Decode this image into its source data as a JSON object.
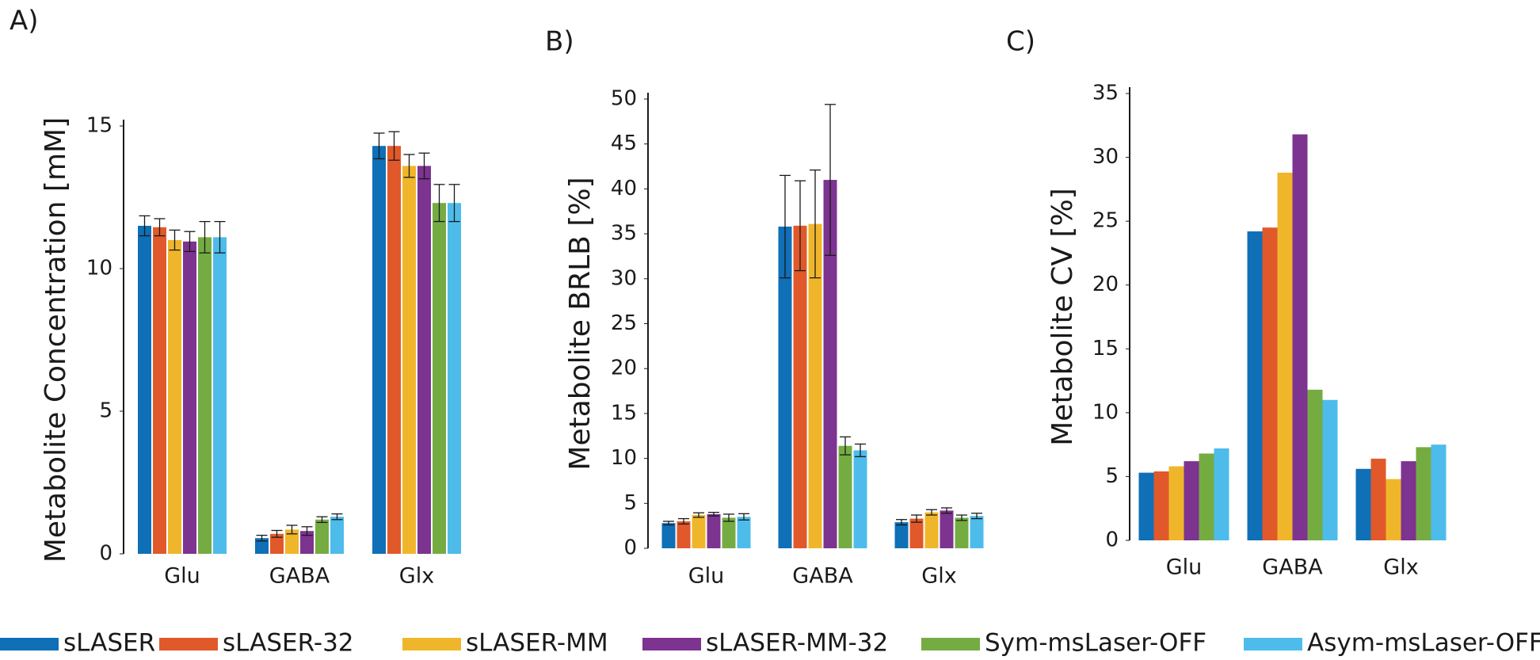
{
  "legend": [
    {
      "name": "sLASER",
      "color": "#0f6fb7"
    },
    {
      "name": "sLASER-32",
      "color": "#e1592a"
    },
    {
      "name": "sLASER-MM",
      "color": "#f0b62b"
    },
    {
      "name": "sLASER-MM-32",
      "color": "#7d3390"
    },
    {
      "name": "Sym-msLaser-OFF",
      "color": "#75ac42"
    },
    {
      "name": "Asym-msLaser-OFF",
      "color": "#4dbceb"
    }
  ],
  "chart_data": [
    {
      "type": "bar",
      "label": "A)",
      "y_label": "Metabolite Concentration [mM]",
      "categories": [
        "Glu",
        "GABA",
        "Glx"
      ],
      "ylim": [
        0,
        15
      ],
      "yticks": [
        0,
        5,
        10,
        15
      ],
      "series": [
        {
          "values": [
            11.5,
            0.55,
            14.3
          ],
          "errors": [
            0.35,
            0.1,
            0.45
          ]
        },
        {
          "values": [
            11.45,
            0.7,
            14.3
          ],
          "errors": [
            0.3,
            0.12,
            0.5
          ]
        },
        {
          "values": [
            11.0,
            0.85,
            13.6
          ],
          "errors": [
            0.35,
            0.15,
            0.4
          ]
        },
        {
          "values": [
            10.95,
            0.8,
            13.6
          ],
          "errors": [
            0.35,
            0.15,
            0.45
          ]
        },
        {
          "values": [
            11.1,
            1.2,
            12.3
          ],
          "errors": [
            0.55,
            0.1,
            0.65
          ]
        },
        {
          "values": [
            11.1,
            1.3,
            12.3
          ],
          "errors": [
            0.55,
            0.1,
            0.65
          ]
        }
      ]
    },
    {
      "type": "bar",
      "label": "B)",
      "y_label": "Metabolite BRLB [%]",
      "categories": [
        "Glu",
        "GABA",
        "Glx"
      ],
      "ylim": [
        0,
        50
      ],
      "yticks": [
        0,
        5,
        10,
        15,
        20,
        25,
        30,
        35,
        40,
        45,
        50
      ],
      "series": [
        {
          "values": [
            2.8,
            35.8,
            2.9
          ],
          "errors": [
            0.2,
            5.7,
            0.3
          ]
        },
        {
          "values": [
            3.0,
            35.9,
            3.3
          ],
          "errors": [
            0.3,
            5.0,
            0.4
          ]
        },
        {
          "values": [
            3.7,
            36.1,
            4.0
          ],
          "errors": [
            0.25,
            6.0,
            0.3
          ]
        },
        {
          "values": [
            3.8,
            41.0,
            4.2
          ],
          "errors": [
            0.2,
            8.4,
            0.3
          ]
        },
        {
          "values": [
            3.4,
            11.4,
            3.4
          ],
          "errors": [
            0.4,
            1.0,
            0.3
          ]
        },
        {
          "values": [
            3.5,
            10.9,
            3.6
          ],
          "errors": [
            0.35,
            0.7,
            0.3
          ]
        }
      ]
    },
    {
      "type": "bar",
      "label": "C)",
      "y_label": "Metabolite CV [%]",
      "categories": [
        "Glu",
        "GABA",
        "Glx"
      ],
      "ylim": [
        0,
        35
      ],
      "yticks": [
        0,
        5,
        10,
        15,
        20,
        25,
        30,
        35
      ],
      "series": [
        {
          "values": [
            5.3,
            24.2,
            5.6
          ]
        },
        {
          "values": [
            5.4,
            24.5,
            6.4
          ]
        },
        {
          "values": [
            5.8,
            28.8,
            4.8
          ]
        },
        {
          "values": [
            6.2,
            31.8,
            6.2
          ]
        },
        {
          "values": [
            6.8,
            11.8,
            7.3
          ]
        },
        {
          "values": [
            7.2,
            11.0,
            7.5
          ]
        }
      ]
    }
  ]
}
